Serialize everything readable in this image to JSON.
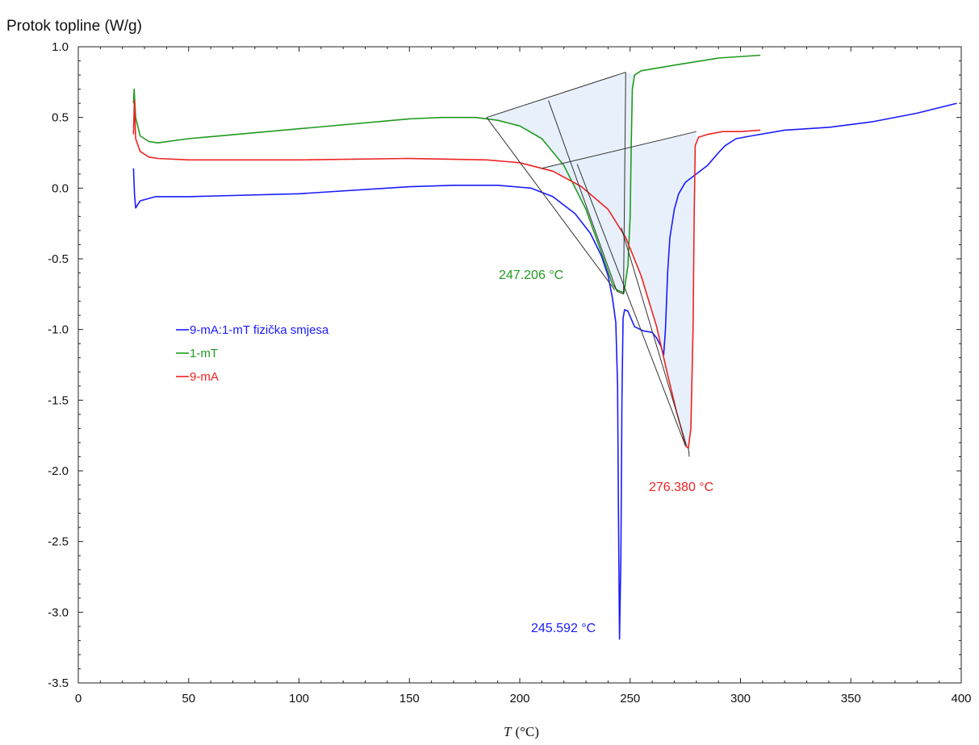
{
  "chart_data": {
    "type": "line",
    "ylabel": "Protok topline (W/g)",
    "xlabel_symbol": "T",
    "xlabel_unit": "(°C)",
    "xlim": [
      0,
      400
    ],
    "ylim": [
      -3.5,
      1.0
    ],
    "x_ticks": [
      "0",
      "50",
      "100",
      "150",
      "200",
      "250",
      "300",
      "350",
      "400"
    ],
    "y_ticks": [
      "1.0",
      "0.5",
      "0.0",
      "-0.5",
      "-1.0",
      "-1.5",
      "-2.0",
      "-2.5",
      "-3.0",
      "-3.5"
    ],
    "legend_position": "left",
    "series": [
      {
        "name": "9-mA:1-mT fizička smjesa",
        "color": "#1a1aff",
        "points": [
          [
            25,
            0.14
          ],
          [
            25.5,
            -0.05
          ],
          [
            26,
            -0.14
          ],
          [
            28,
            -0.09
          ],
          [
            35,
            -0.06
          ],
          [
            50,
            -0.06
          ],
          [
            100,
            -0.04
          ],
          [
            150,
            0.01
          ],
          [
            170,
            0.02
          ],
          [
            190,
            0.02
          ],
          [
            205,
            0.0
          ],
          [
            215,
            -0.06
          ],
          [
            225,
            -0.18
          ],
          [
            232,
            -0.32
          ],
          [
            237,
            -0.48
          ],
          [
            240,
            -0.62
          ],
          [
            242,
            -0.78
          ],
          [
            243.5,
            -0.95
          ],
          [
            244.3,
            -1.4
          ],
          [
            244.7,
            -2.3
          ],
          [
            245.2,
            -3.19
          ],
          [
            245.8,
            -2.6
          ],
          [
            246.3,
            -1.5
          ],
          [
            246.8,
            -0.92
          ],
          [
            247.5,
            -0.86
          ],
          [
            249,
            -0.87
          ],
          [
            252,
            -0.98
          ],
          [
            256,
            -1.01
          ],
          [
            260,
            -1.02
          ],
          [
            262,
            -1.06
          ],
          [
            264,
            -1.12
          ],
          [
            265.2,
            -1.18
          ],
          [
            266,
            -1.0
          ],
          [
            267,
            -0.6
          ],
          [
            268,
            -0.35
          ],
          [
            270,
            -0.15
          ],
          [
            272,
            -0.04
          ],
          [
            275,
            0.04
          ],
          [
            280,
            0.1
          ],
          [
            285,
            0.16
          ],
          [
            290,
            0.25
          ],
          [
            293,
            0.3
          ],
          [
            298,
            0.35
          ],
          [
            305,
            0.37
          ],
          [
            320,
            0.41
          ],
          [
            340,
            0.43
          ],
          [
            360,
            0.47
          ],
          [
            380,
            0.53
          ],
          [
            398,
            0.6
          ]
        ]
      },
      {
        "name": "1-mT",
        "color": "#1f9a1f",
        "points": [
          [
            25,
            0.6
          ],
          [
            25.3,
            0.7
          ],
          [
            26,
            0.5
          ],
          [
            28,
            0.37
          ],
          [
            32,
            0.33
          ],
          [
            36,
            0.32
          ],
          [
            50,
            0.35
          ],
          [
            100,
            0.42
          ],
          [
            150,
            0.49
          ],
          [
            165,
            0.5
          ],
          [
            180,
            0.5
          ],
          [
            190,
            0.48
          ],
          [
            200,
            0.44
          ],
          [
            210,
            0.35
          ],
          [
            220,
            0.16
          ],
          [
            230,
            -0.15
          ],
          [
            238,
            -0.5
          ],
          [
            242,
            -0.68
          ],
          [
            244,
            -0.72
          ],
          [
            247.2,
            -0.74
          ],
          [
            249,
            -0.55
          ],
          [
            250,
            -0.2
          ],
          [
            250.5,
            0.3
          ],
          [
            251,
            0.7
          ],
          [
            252,
            0.8
          ],
          [
            255,
            0.83
          ],
          [
            270,
            0.87
          ],
          [
            290,
            0.92
          ],
          [
            309,
            0.94
          ]
        ]
      },
      {
        "name": "9-mA",
        "color": "#ee2222",
        "points": [
          [
            25,
            0.38
          ],
          [
            25.4,
            0.62
          ],
          [
            26,
            0.35
          ],
          [
            28,
            0.26
          ],
          [
            32,
            0.22
          ],
          [
            36,
            0.21
          ],
          [
            50,
            0.2
          ],
          [
            100,
            0.2
          ],
          [
            150,
            0.21
          ],
          [
            185,
            0.2
          ],
          [
            200,
            0.18
          ],
          [
            215,
            0.12
          ],
          [
            228,
            0.01
          ],
          [
            240,
            -0.15
          ],
          [
            248,
            -0.35
          ],
          [
            255,
            -0.62
          ],
          [
            262,
            -0.98
          ],
          [
            267,
            -1.32
          ],
          [
            271,
            -1.58
          ],
          [
            274,
            -1.75
          ],
          [
            275,
            -1.82
          ],
          [
            276.38,
            -1.84
          ],
          [
            277.5,
            -1.7
          ],
          [
            278.5,
            -1.0
          ],
          [
            279,
            -0.2
          ],
          [
            279.5,
            0.3
          ],
          [
            281,
            0.36
          ],
          [
            285,
            0.38
          ],
          [
            292,
            0.4
          ],
          [
            300,
            0.4
          ],
          [
            309,
            0.41
          ]
        ]
      }
    ],
    "annotations": [
      {
        "text": "247.206 °C",
        "color": "#1f9a1f",
        "x": 247.206
      },
      {
        "text": "276.380 °C",
        "color": "#ee2222",
        "x": 276.38
      },
      {
        "text": "245.592 °C",
        "color": "#1a1aff",
        "x": 245.592
      }
    ],
    "integration_areas": [
      {
        "series": "1-mT",
        "baseline": [
          [
            185,
            0.5
          ],
          [
            248,
            0.82
          ]
        ],
        "x_range": [
          185,
          252
        ]
      },
      {
        "series": "9-mA",
        "baseline": [
          [
            210,
            0.14
          ],
          [
            280,
            0.4
          ]
        ],
        "x_range": [
          210,
          280
        ]
      }
    ],
    "onset_tangents": [
      [
        [
          213,
          0.62
        ],
        [
          244,
          -0.73
        ]
      ],
      [
        [
          185,
          0.5
        ],
        [
          243,
          -0.72
        ]
      ],
      [
        [
          226,
          0.17
        ],
        [
          275,
          -1.82
        ]
      ],
      [
        [
          244,
          -0.73
        ],
        [
          247,
          -0.75
        ]
      ],
      [
        [
          247,
          -0.75
        ],
        [
          248,
          0.82
        ]
      ],
      [
        [
          246,
          -0.28
        ],
        [
          275.5,
          -1.82
        ]
      ],
      [
        [
          276.4,
          -1.84
        ],
        [
          276.8,
          -1.9
        ]
      ]
    ]
  }
}
